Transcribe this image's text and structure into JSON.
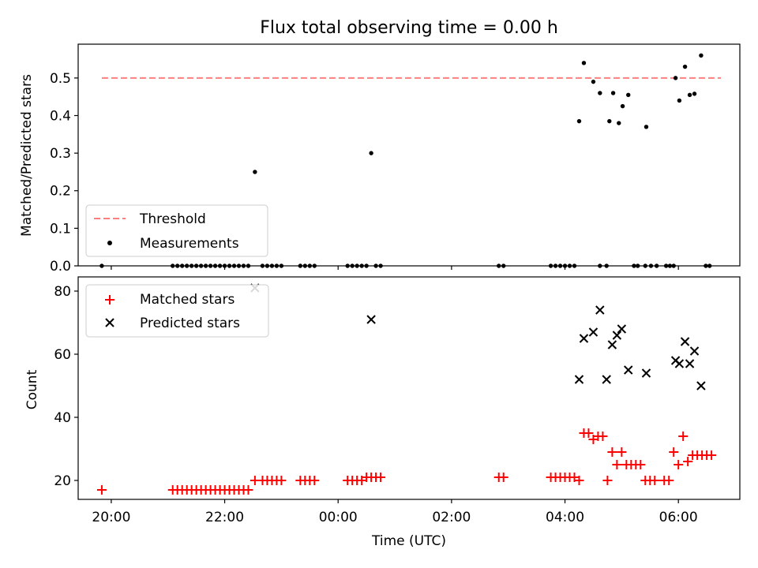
{
  "chart_data": [
    {
      "type": "scatter",
      "title": "Flux total observing time = 0.00 h",
      "xlabel": "",
      "ylabel": "Matched/Predicted stars",
      "ylim": [
        0,
        0.59
      ],
      "yticks": [
        0.0,
        0.1,
        0.2,
        0.3,
        0.4,
        0.5
      ],
      "ytick_labels": [
        "0.0",
        "0.1",
        "0.2",
        "0.3",
        "0.4",
        "0.5"
      ],
      "threshold": {
        "name": "Threshold",
        "value": 0.5,
        "x_start": "19:50",
        "x_end": "06:45",
        "color": "#ff7f7f"
      },
      "legend": {
        "placement": "lower-left",
        "entries": [
          "Threshold",
          "Measurements"
        ]
      },
      "series": [
        {
          "name": "Measurements",
          "color": "#000000",
          "marker": "dot",
          "points": [
            [
              "19:50",
              0.0
            ],
            [
              "21:05",
              0.0
            ],
            [
              "21:10",
              0.0
            ],
            [
              "21:15",
              0.0
            ],
            [
              "21:20",
              0.0
            ],
            [
              "21:25",
              0.0
            ],
            [
              "21:30",
              0.0
            ],
            [
              "21:35",
              0.0
            ],
            [
              "21:40",
              0.0
            ],
            [
              "21:45",
              0.0
            ],
            [
              "21:50",
              0.0
            ],
            [
              "21:55",
              0.0
            ],
            [
              "22:00",
              0.0
            ],
            [
              "22:05",
              0.0
            ],
            [
              "22:10",
              0.0
            ],
            [
              "22:15",
              0.0
            ],
            [
              "22:20",
              0.0
            ],
            [
              "22:25",
              0.0
            ],
            [
              "22:32",
              0.25
            ],
            [
              "22:40",
              0.0
            ],
            [
              "22:45",
              0.0
            ],
            [
              "22:50",
              0.0
            ],
            [
              "22:55",
              0.0
            ],
            [
              "23:00",
              0.0
            ],
            [
              "23:20",
              0.0
            ],
            [
              "23:25",
              0.0
            ],
            [
              "23:30",
              0.0
            ],
            [
              "23:35",
              0.0
            ],
            [
              "00:10",
              0.0
            ],
            [
              "00:15",
              0.0
            ],
            [
              "00:20",
              0.0
            ],
            [
              "00:25",
              0.0
            ],
            [
              "00:30",
              0.0
            ],
            [
              "00:35",
              0.3
            ],
            [
              "00:40",
              0.0
            ],
            [
              "00:45",
              0.0
            ],
            [
              "02:50",
              0.0
            ],
            [
              "02:55",
              0.0
            ],
            [
              "03:45",
              0.0
            ],
            [
              "03:50",
              0.0
            ],
            [
              "03:55",
              0.0
            ],
            [
              "04:00",
              0.0
            ],
            [
              "04:05",
              0.0
            ],
            [
              "04:10",
              0.0
            ],
            [
              "04:15",
              0.385
            ],
            [
              "04:20",
              0.54
            ],
            [
              "04:30",
              0.49
            ],
            [
              "04:37",
              0.0
            ],
            [
              "04:37",
              0.46
            ],
            [
              "04:44",
              0.0
            ],
            [
              "04:47",
              0.385
            ],
            [
              "04:51",
              0.46
            ],
            [
              "04:57",
              0.38
            ],
            [
              "05:01",
              0.425
            ],
            [
              "05:07",
              0.455
            ],
            [
              "05:13",
              0.0
            ],
            [
              "05:17",
              0.0
            ],
            [
              "05:25",
              0.0
            ],
            [
              "05:26",
              0.37
            ],
            [
              "05:31",
              0.0
            ],
            [
              "05:37",
              0.0
            ],
            [
              "05:47",
              0.0
            ],
            [
              "05:51",
              0.0
            ],
            [
              "05:55",
              0.0
            ],
            [
              "05:57",
              0.5
            ],
            [
              "06:01",
              0.44
            ],
            [
              "06:07",
              0.53
            ],
            [
              "06:12",
              0.455
            ],
            [
              "06:17",
              0.458
            ],
            [
              "06:24",
              0.56
            ],
            [
              "06:29",
              0.0
            ],
            [
              "06:33",
              0.0
            ]
          ]
        }
      ]
    },
    {
      "type": "scatter",
      "title": "",
      "xlabel": "Time (UTC)",
      "ylabel": "Count",
      "ylim": [
        14,
        84.5
      ],
      "yticks": [
        20,
        40,
        60,
        80
      ],
      "ytick_labels": [
        "20",
        "40",
        "60",
        "80"
      ],
      "xlim": [
        "19:25",
        "07:05"
      ],
      "xticks": [
        "20:00",
        "22:00",
        "00:00",
        "02:00",
        "04:00",
        "06:00"
      ],
      "legend": {
        "placement": "top-left",
        "entries": [
          "Matched stars",
          "Predicted stars"
        ]
      },
      "series": [
        {
          "name": "Matched stars",
          "color": "#ff0000",
          "marker": "plus",
          "points": [
            [
              "19:50",
              17
            ],
            [
              "21:05",
              17
            ],
            [
              "21:10",
              17
            ],
            [
              "21:15",
              17
            ],
            [
              "21:20",
              17
            ],
            [
              "21:25",
              17
            ],
            [
              "21:30",
              17
            ],
            [
              "21:35",
              17
            ],
            [
              "21:40",
              17
            ],
            [
              "21:45",
              17
            ],
            [
              "21:50",
              17
            ],
            [
              "21:55",
              17
            ],
            [
              "22:00",
              17
            ],
            [
              "22:05",
              17
            ],
            [
              "22:10",
              17
            ],
            [
              "22:15",
              17
            ],
            [
              "22:20",
              17
            ],
            [
              "22:25",
              17
            ],
            [
              "22:32",
              20
            ],
            [
              "22:40",
              20
            ],
            [
              "22:45",
              20
            ],
            [
              "22:50",
              20
            ],
            [
              "22:55",
              20
            ],
            [
              "23:00",
              20
            ],
            [
              "23:20",
              20
            ],
            [
              "23:25",
              20
            ],
            [
              "23:30",
              20
            ],
            [
              "23:35",
              20
            ],
            [
              "00:10",
              20
            ],
            [
              "00:15",
              20
            ],
            [
              "00:20",
              20
            ],
            [
              "00:25",
              20
            ],
            [
              "00:30",
              21
            ],
            [
              "00:35",
              21
            ],
            [
              "00:40",
              21
            ],
            [
              "00:45",
              21
            ],
            [
              "02:50",
              21
            ],
            [
              "02:55",
              21
            ],
            [
              "03:45",
              21
            ],
            [
              "03:50",
              21
            ],
            [
              "03:55",
              21
            ],
            [
              "04:00",
              21
            ],
            [
              "04:05",
              21
            ],
            [
              "04:10",
              21
            ],
            [
              "04:15",
              20
            ],
            [
              "04:20",
              35
            ],
            [
              "04:25",
              35
            ],
            [
              "04:30",
              33
            ],
            [
              "04:35",
              34
            ],
            [
              "04:40",
              34
            ],
            [
              "04:45",
              20
            ],
            [
              "04:50",
              29
            ],
            [
              "04:55",
              25
            ],
            [
              "05:00",
              29
            ],
            [
              "05:05",
              25
            ],
            [
              "05:10",
              25
            ],
            [
              "05:15",
              25
            ],
            [
              "05:20",
              25
            ],
            [
              "05:25",
              20
            ],
            [
              "05:30",
              20
            ],
            [
              "05:35",
              20
            ],
            [
              "05:45",
              20
            ],
            [
              "05:50",
              20
            ],
            [
              "05:55",
              29
            ],
            [
              "06:00",
              25
            ],
            [
              "06:05",
              34
            ],
            [
              "06:10",
              26
            ],
            [
              "06:15",
              28
            ],
            [
              "06:20",
              28
            ],
            [
              "06:25",
              28
            ],
            [
              "06:30",
              28
            ],
            [
              "06:35",
              28
            ]
          ]
        },
        {
          "name": "Predicted stars",
          "color": "#000000",
          "marker": "x",
          "points": [
            [
              "22:32",
              81
            ],
            [
              "00:35",
              71
            ],
            [
              "04:15",
              52
            ],
            [
              "04:20",
              65
            ],
            [
              "04:30",
              67
            ],
            [
              "04:37",
              74
            ],
            [
              "04:44",
              52
            ],
            [
              "04:50",
              63
            ],
            [
              "04:55",
              66
            ],
            [
              "05:00",
              68
            ],
            [
              "05:07",
              55
            ],
            [
              "05:26",
              54
            ],
            [
              "05:57",
              58
            ],
            [
              "06:01",
              57
            ],
            [
              "06:07",
              64
            ],
            [
              "06:12",
              57
            ],
            [
              "06:17",
              61
            ],
            [
              "06:24",
              50
            ]
          ]
        }
      ]
    }
  ]
}
